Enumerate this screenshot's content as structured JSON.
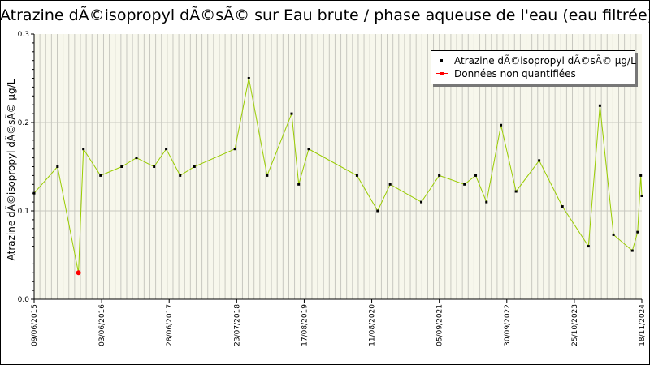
{
  "chart_data": {
    "type": "line",
    "title": "Atrazine dÃ©isopropyl dÃ©sÃ© sur Eau brute / phase aqueuse de l'eau (eau filtrée)",
    "ylabel": "Atrazine dÃ©isopropyl dÃ©sÃ© µg/L",
    "xlabel": "",
    "ylim": [
      0,
      0.3
    ],
    "y_ticks": [
      "0.0",
      "0.1",
      "0.2",
      "0.3"
    ],
    "x_range": [
      "2015-06-09",
      "2024-11-18"
    ],
    "x_ticks": [
      "09/06/2015",
      "03/06/2016",
      "28/06/2017",
      "23/07/2018",
      "17/08/2019",
      "11/08/2020",
      "05/09/2021",
      "30/09/2022",
      "25/10/2023",
      "18/11/2024"
    ],
    "grid": true,
    "legend_position": "top-right",
    "series": [
      {
        "name": "Atrazine dÃ©isopropyl dÃ©sÃ© µg/L",
        "color": "#99cc00",
        "marker_color": "#000000",
        "points": [
          {
            "x": "2015-06-09",
            "y": 0.12
          },
          {
            "x": "2015-10-20",
            "y": 0.15
          },
          {
            "x": "2016-02-16",
            "y": 0.03
          },
          {
            "x": "2016-03-15",
            "y": 0.17
          },
          {
            "x": "2016-06-20",
            "y": 0.14
          },
          {
            "x": "2016-10-18",
            "y": 0.15
          },
          {
            "x": "2017-01-10",
            "y": 0.16
          },
          {
            "x": "2017-04-20",
            "y": 0.15
          },
          {
            "x": "2017-06-28",
            "y": 0.17
          },
          {
            "x": "2017-09-15",
            "y": 0.14
          },
          {
            "x": "2017-12-05",
            "y": 0.15
          },
          {
            "x": "2018-07-23",
            "y": 0.17
          },
          {
            "x": "2018-10-10",
            "y": 0.25
          },
          {
            "x": "2019-01-22",
            "y": 0.14
          },
          {
            "x": "2019-06-10",
            "y": 0.21
          },
          {
            "x": "2019-07-20",
            "y": 0.13
          },
          {
            "x": "2019-09-15",
            "y": 0.17
          },
          {
            "x": "2020-06-15",
            "y": 0.14
          },
          {
            "x": "2020-10-10",
            "y": 0.1
          },
          {
            "x": "2020-12-20",
            "y": 0.13
          },
          {
            "x": "2021-06-15",
            "y": 0.11
          },
          {
            "x": "2021-09-25",
            "y": 0.14
          },
          {
            "x": "2022-02-15",
            "y": 0.13
          },
          {
            "x": "2022-04-20",
            "y": 0.14
          },
          {
            "x": "2022-06-20",
            "y": 0.11
          },
          {
            "x": "2022-09-10",
            "y": 0.197
          },
          {
            "x": "2022-12-05",
            "y": 0.122
          },
          {
            "x": "2023-04-15",
            "y": 0.157
          },
          {
            "x": "2023-08-25",
            "y": 0.105
          },
          {
            "x": "2024-01-20",
            "y": 0.06
          },
          {
            "x": "2024-03-25",
            "y": 0.219
          },
          {
            "x": "2024-06-10",
            "y": 0.073
          },
          {
            "x": "2024-09-25",
            "y": 0.055
          },
          {
            "x": "2024-10-25",
            "y": 0.076
          },
          {
            "x": "2024-11-12",
            "y": 0.14
          },
          {
            "x": "2024-11-18",
            "y": 0.117
          }
        ]
      },
      {
        "name": "Données non quantifiées",
        "color": "#ff0000",
        "marker_color": "#ff0000",
        "points": [
          {
            "x": "2016-02-16",
            "y": 0.03
          }
        ]
      }
    ]
  }
}
